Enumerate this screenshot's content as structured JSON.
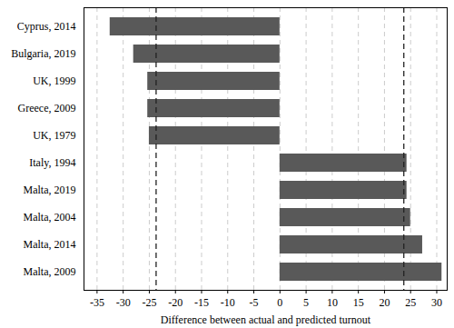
{
  "chart_data": {
    "type": "bar",
    "orientation": "horizontal",
    "xlabel": "Difference between actual and predicted turnout",
    "categories": [
      "Cyprus, 2014",
      "Bulgaria, 2019",
      "UK, 1999",
      "Greece, 2009",
      "UK, 1979",
      "Italy, 1994",
      "Malta, 2019",
      "Malta, 2004",
      "Malta, 2014",
      "Malta, 2009"
    ],
    "values": [
      -32.5,
      -28,
      -25.3,
      -25.3,
      -25,
      24.3,
      24.3,
      25,
      27.3,
      31
    ],
    "color": "#595959",
    "xlim": [
      -37.5,
      32
    ],
    "xticks": [
      -35,
      -30,
      -25,
      -20,
      -15,
      -10,
      -5,
      0,
      5,
      10,
      15,
      20,
      25,
      30
    ],
    "reference_lines": [
      -23.7,
      23.7
    ],
    "grid": true
  }
}
